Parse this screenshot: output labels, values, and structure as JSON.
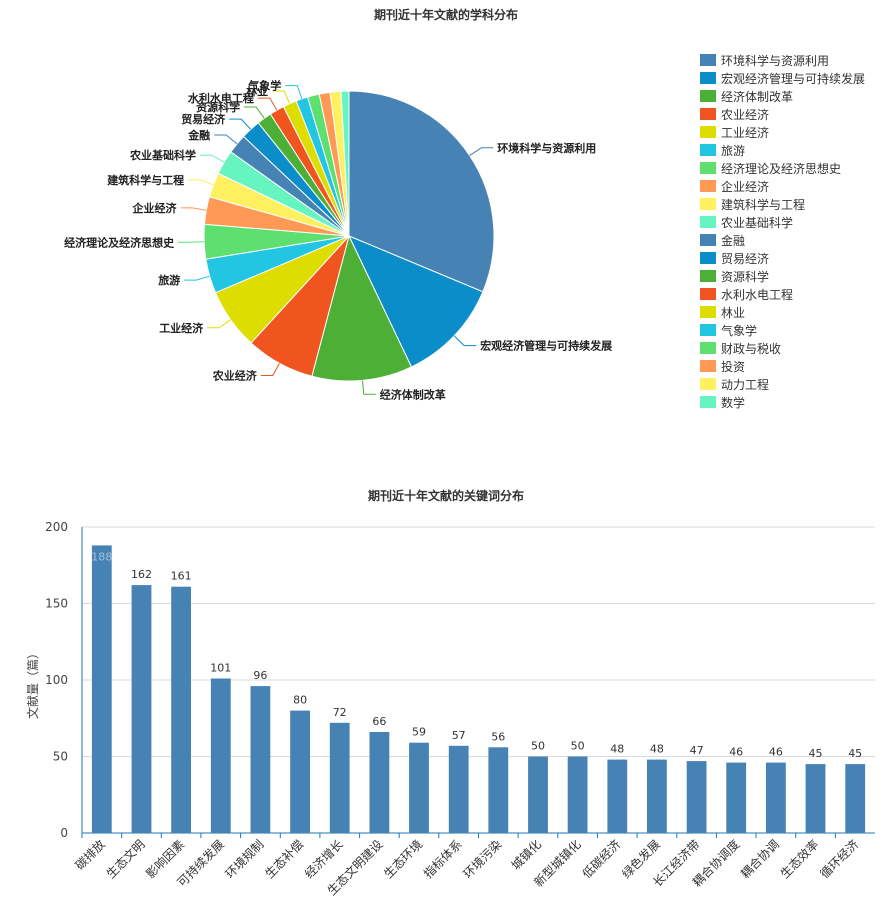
{
  "chart_data": [
    {
      "type": "pie",
      "title": "期刊近十年文献的学科分布",
      "legend_position": "right",
      "categories": [
        "环境科学与资源利用",
        "宏观经济管理与可持续发展",
        "经济体制改革",
        "农业经济",
        "工业经济",
        "旅游",
        "经济理论及经济思想史",
        "企业经济",
        "建筑科学与工程",
        "农业基础科学",
        "金融",
        "贸易经济",
        "资源科学",
        "水利水电工程",
        "林业",
        "气象学",
        "财政与税收",
        "投资",
        "动力工程",
        "数学"
      ],
      "values": [
        285,
        106,
        102,
        70,
        62,
        35,
        35,
        28,
        25,
        25,
        20,
        20,
        15,
        15,
        14,
        12,
        12,
        11,
        11,
        8
      ],
      "colors": [
        "#4682b4",
        "#0a8dc8",
        "#4daf35",
        "#f0541f",
        "#dddd00",
        "#22c5e2",
        "#5ee070",
        "#ff9955",
        "#fff060",
        "#66f4c0",
        "#4682b4",
        "#0a8dc8",
        "#4daf35",
        "#f0541f",
        "#dddd00",
        "#22c5e2",
        "#5ee070",
        "#ff9955",
        "#fff060",
        "#66f4c0"
      ],
      "labeled_slices": [
        "环境科学与资源利用",
        "宏观经济管理与可持续发展",
        "经济体制改革",
        "农业经济",
        "工业经济",
        "旅游",
        "经济理论及经济思想史",
        "企业经济",
        "建筑科学与工程",
        "农业基础科学",
        "金融",
        "贸易经济",
        "资源科学",
        "水利水电工程",
        "林业",
        "气象学"
      ]
    },
    {
      "type": "bar",
      "title": "期刊近十年文献的关键词分布",
      "ylabel": "文献量（篇）",
      "xlabel": "",
      "ylim": [
        0,
        200
      ],
      "yticks": [
        0,
        50,
        100,
        150,
        200
      ],
      "grid": true,
      "bar_color": "#4682b4",
      "categories": [
        "碳排放",
        "生态文明",
        "影响因素",
        "可持续发展",
        "环境规制",
        "生态补偿",
        "经济增长",
        "生态文明建设",
        "生态环境",
        "指标体系",
        "环境污染",
        "城镇化",
        "新型城镇化",
        "低碳经济",
        "绿色发展",
        "长江经济带",
        "耦合协调度",
        "耦合协调",
        "生态效率",
        "循环经济"
      ],
      "values": [
        188,
        162,
        161,
        101,
        96,
        80,
        72,
        66,
        59,
        57,
        56,
        50,
        50,
        48,
        48,
        47,
        46,
        46,
        45,
        45
      ]
    }
  ]
}
